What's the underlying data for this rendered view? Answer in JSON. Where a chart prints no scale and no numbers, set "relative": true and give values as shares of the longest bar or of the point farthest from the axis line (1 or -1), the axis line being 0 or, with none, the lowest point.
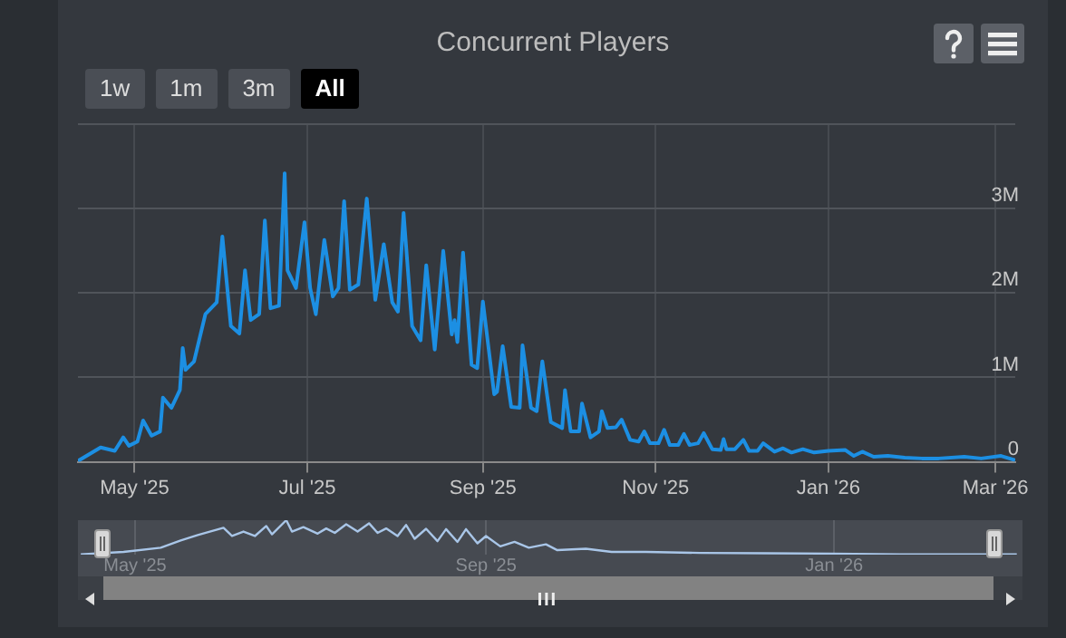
{
  "chart_data": [
    {
      "type": "line",
      "title": "Concurrent Players",
      "annotations": [
        "1w",
        "1m",
        "3m",
        "All"
      ],
      "color": "#1c8fe3",
      "x": [
        "2025-04-11",
        "2025-04-19",
        "2025-04-24",
        "2025-04-27",
        "2025-04-29",
        "2025-05-02",
        "2025-05-04",
        "2025-05-07",
        "2025-05-10",
        "2025-05-11",
        "2025-05-14",
        "2025-05-17",
        "2025-05-18",
        "2025-05-19",
        "2025-05-22",
        "2025-05-26",
        "2025-05-30",
        "2025-06-01",
        "2025-06-04",
        "2025-06-07",
        "2025-06-09",
        "2025-06-11",
        "2025-06-14",
        "2025-06-16",
        "2025-06-18",
        "2025-06-21",
        "2025-06-23",
        "2025-06-24",
        "2025-06-27",
        "2025-06-30",
        "2025-07-02",
        "2025-07-04",
        "2025-07-07",
        "2025-07-10",
        "2025-07-12",
        "2025-07-14",
        "2025-07-16",
        "2025-07-19",
        "2025-07-22",
        "2025-07-25",
        "2025-07-28",
        "2025-07-31",
        "2025-08-02",
        "2025-08-04",
        "2025-08-07",
        "2025-08-10",
        "2025-08-12",
        "2025-08-15",
        "2025-08-18",
        "2025-08-21",
        "2025-08-22",
        "2025-08-23",
        "2025-08-25",
        "2025-08-28",
        "2025-08-30",
        "2025-09-01",
        "2025-09-05",
        "2025-09-06",
        "2025-09-08",
        "2025-09-11",
        "2025-09-14",
        "2025-09-15",
        "2025-09-18",
        "2025-09-20",
        "2025-09-22",
        "2025-09-25",
        "2025-09-29",
        "2025-09-30",
        "2025-10-02",
        "2025-10-05",
        "2025-10-06",
        "2025-10-09",
        "2025-10-12",
        "2025-10-13",
        "2025-10-15",
        "2025-10-18",
        "2025-10-20",
        "2025-10-23",
        "2025-10-26",
        "2025-10-28",
        "2025-10-30",
        "2025-11-02",
        "2025-11-04",
        "2025-11-06",
        "2025-11-09",
        "2025-11-11",
        "2025-11-13",
        "2025-11-16",
        "2025-11-18",
        "2025-11-21",
        "2025-11-24",
        "2025-11-25",
        "2025-11-26",
        "2025-11-29",
        "2025-12-02",
        "2025-12-04",
        "2025-12-07",
        "2025-12-09",
        "2025-12-13",
        "2025-12-16",
        "2025-12-19",
        "2025-12-23",
        "2025-12-27",
        "2026-01-01",
        "2026-01-07",
        "2026-01-10",
        "2026-01-13",
        "2026-01-17",
        "2026-01-22",
        "2026-01-28",
        "2026-02-03",
        "2026-02-09",
        "2026-02-18",
        "2026-02-24",
        "2026-03-03",
        "2026-03-08"
      ],
      "values": [
        10000,
        170000,
        130000,
        290000,
        190000,
        240000,
        490000,
        310000,
        360000,
        760000,
        640000,
        850000,
        1350000,
        1090000,
        1190000,
        1750000,
        1890000,
        2670000,
        1610000,
        1520000,
        2270000,
        1680000,
        1750000,
        2860000,
        1820000,
        1850000,
        3420000,
        2270000,
        2060000,
        2840000,
        2060000,
        1750000,
        2630000,
        1960000,
        2060000,
        3090000,
        2040000,
        2100000,
        3120000,
        1920000,
        2580000,
        1890000,
        1780000,
        2950000,
        1610000,
        1440000,
        2330000,
        1330000,
        2500000,
        1510000,
        1680000,
        1420000,
        2480000,
        1150000,
        1110000,
        1900000,
        800000,
        830000,
        1370000,
        650000,
        640000,
        1380000,
        640000,
        600000,
        1190000,
        470000,
        400000,
        850000,
        360000,
        360000,
        690000,
        290000,
        360000,
        600000,
        400000,
        410000,
        500000,
        260000,
        240000,
        360000,
        220000,
        220000,
        380000,
        200000,
        200000,
        330000,
        200000,
        220000,
        340000,
        150000,
        140000,
        270000,
        150000,
        150000,
        260000,
        130000,
        130000,
        220000,
        120000,
        160000,
        110000,
        150000,
        110000,
        130000,
        140000,
        70000,
        120000,
        60000,
        70000,
        50000,
        40000,
        40000,
        60000,
        40000,
        70000,
        20000
      ],
      "xlim": [
        "2025-04-11",
        "2026-03-08"
      ],
      "xticks": [
        {
          "value": "2025-05-01",
          "label": "May '25"
        },
        {
          "value": "2025-07-01",
          "label": "Jul '25"
        },
        {
          "value": "2025-09-01",
          "label": "Sep '25"
        },
        {
          "value": "2025-11-01",
          "label": "Nov '25"
        },
        {
          "value": "2026-01-01",
          "label": "Jan '26"
        },
        {
          "value": "2026-03-01",
          "label": "Mar '26"
        }
      ],
      "ylim": [
        0,
        4000000
      ],
      "yticks": [
        {
          "value": 0,
          "label": "0"
        },
        {
          "value": 1000000,
          "label": "1M"
        },
        {
          "value": 2000000,
          "label": "2M"
        },
        {
          "value": 3000000,
          "label": "3M"
        },
        {
          "value": 4000000,
          "label": null
        }
      ],
      "grid": true
    },
    {
      "type": "line",
      "relative": true,
      "color": "#a9c6e8",
      "tick_labels": "x",
      "grid": "x",
      "x": [
        "2025-04-12",
        "2025-04-27",
        "2025-05-10",
        "2025-05-17",
        "2025-05-23",
        "2025-06-01",
        "2025-06-04",
        "2025-06-08",
        "2025-06-12",
        "2025-06-16",
        "2025-06-18",
        "2025-06-23",
        "2025-06-25",
        "2025-06-29",
        "2025-07-04",
        "2025-07-07",
        "2025-07-10",
        "2025-07-14",
        "2025-07-18",
        "2025-07-22",
        "2025-07-25",
        "2025-07-28",
        "2025-08-01",
        "2025-08-04",
        "2025-08-07",
        "2025-08-11",
        "2025-08-15",
        "2025-08-18",
        "2025-08-22",
        "2025-08-25",
        "2025-08-29",
        "2025-09-01",
        "2025-09-06",
        "2025-09-11",
        "2025-09-16",
        "2025-09-22",
        "2025-09-26",
        "2025-10-06",
        "2025-10-15",
        "2025-10-27",
        "2025-11-15",
        "2025-12-08",
        "2025-12-31",
        "2026-01-24",
        "2026-03-06"
      ],
      "values": [
        0.01,
        0.08,
        0.2,
        0.41,
        0.57,
        0.78,
        0.54,
        0.67,
        0.54,
        0.83,
        0.59,
        1,
        0.67,
        0.8,
        0.61,
        0.76,
        0.63,
        0.88,
        0.67,
        0.91,
        0.63,
        0.76,
        0.54,
        0.86,
        0.46,
        0.75,
        0.39,
        0.74,
        0.37,
        0.74,
        0.33,
        0.54,
        0.24,
        0.37,
        0.2,
        0.3,
        0.13,
        0.17,
        0.08,
        0.08,
        0.05,
        0.04,
        0.03,
        0.01,
        0.01
      ],
      "xlim": [
        "2025-04-11",
        "2026-03-08"
      ],
      "xticks": [
        {
          "value": "2025-05-01",
          "label": "May '25"
        },
        {
          "value": "2025-09-01",
          "label": "Sep '25"
        },
        {
          "value": "2026-01-01",
          "label": "Jan '26"
        }
      ]
    }
  ]
}
